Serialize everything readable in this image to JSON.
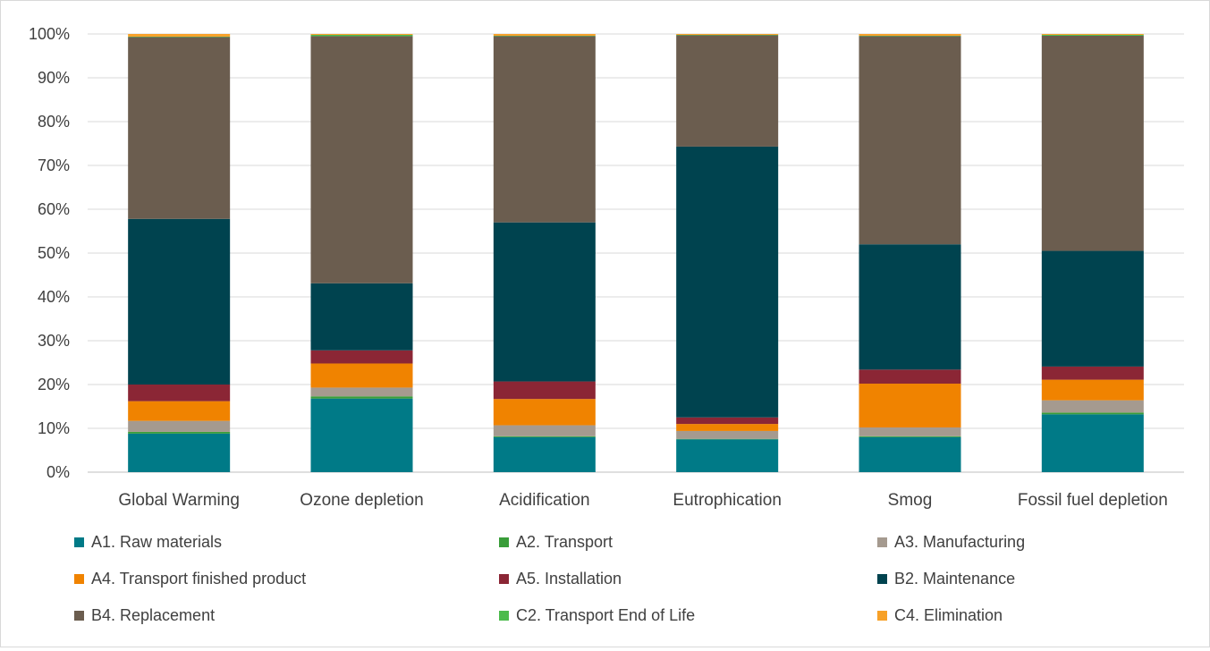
{
  "chart_data": {
    "type": "bar",
    "stacked": true,
    "normalized": true,
    "title": "",
    "xlabel": "",
    "ylabel": "",
    "ylim": [
      0,
      100
    ],
    "y_ticks": [
      "0%",
      "10%",
      "20%",
      "30%",
      "40%",
      "50%",
      "60%",
      "70%",
      "80%",
      "90%",
      "100%"
    ],
    "grid": true,
    "legend_position": "bottom",
    "categories": [
      "Global Warming",
      "Ozone depletion",
      "Acidification",
      "Eutrophication",
      "Smog",
      "Fossil fuel depletion"
    ],
    "series": [
      {
        "name": "A1. Raw materials",
        "color": "#007A87",
        "values": [
          8.8,
          16.8,
          8.0,
          7.5,
          8.0,
          13.2
        ]
      },
      {
        "name": "A2. Transport",
        "color": "#3A9D3A",
        "values": [
          0.4,
          0.5,
          0.2,
          0.1,
          0.2,
          0.4
        ]
      },
      {
        "name": "A3. Manufacturing",
        "color": "#A59A8F",
        "values": [
          2.5,
          2.0,
          2.5,
          1.8,
          2.0,
          2.8
        ]
      },
      {
        "name": "A4. Transport finished product",
        "color": "#F08300",
        "values": [
          4.5,
          5.5,
          6.0,
          1.6,
          10.0,
          4.7
        ]
      },
      {
        "name": "A5. Installation",
        "color": "#8B2635",
        "values": [
          3.8,
          3.0,
          4.0,
          1.5,
          3.2,
          3.0
        ]
      },
      {
        "name": "B2. Maintenance",
        "color": "#00434F",
        "values": [
          37.8,
          15.3,
          36.3,
          61.8,
          28.6,
          26.4
        ]
      },
      {
        "name": "B4. Replacement",
        "color": "#6B5D4F",
        "values": [
          41.5,
          56.4,
          42.5,
          25.4,
          47.5,
          49.1
        ]
      },
      {
        "name": "C2. Transport End of Life",
        "color": "#4CBB4C",
        "values": [
          0.1,
          0.3,
          0.1,
          0.1,
          0.1,
          0.2
        ]
      },
      {
        "name": "C4. Elimination",
        "color": "#F7A128",
        "values": [
          0.6,
          0.2,
          0.4,
          0.2,
          0.4,
          0.2
        ]
      }
    ]
  }
}
